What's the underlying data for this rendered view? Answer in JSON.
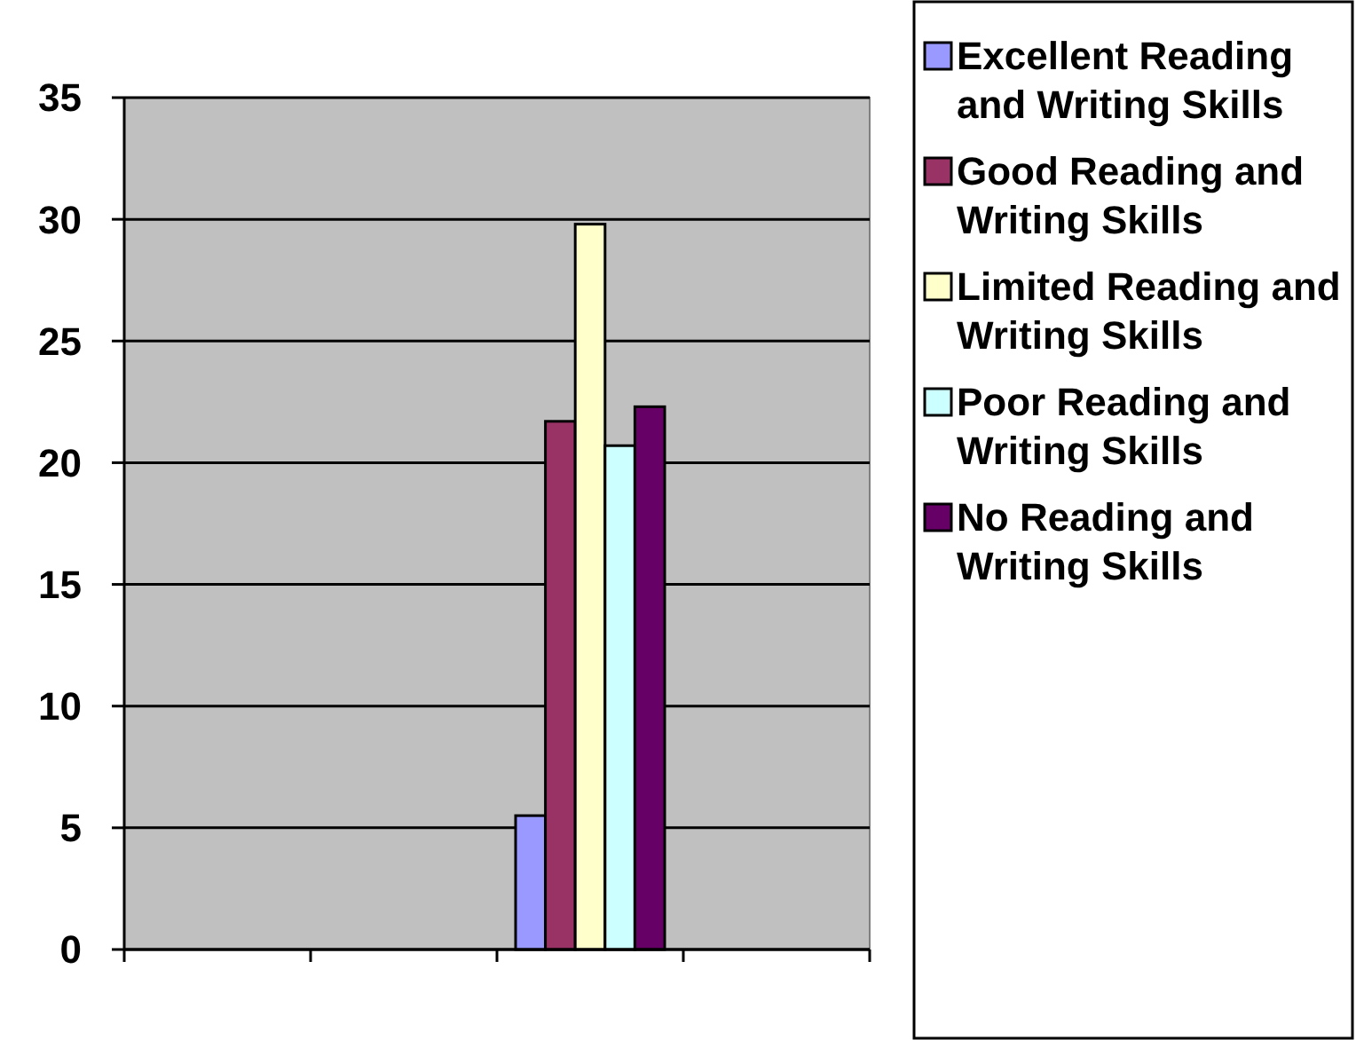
{
  "chart_data": {
    "type": "bar",
    "categories": [
      null,
      null,
      null,
      null
    ],
    "series": [
      {
        "name": "Excellent Reading and Writing Skills",
        "color": "#9999ff",
        "values": [
          null,
          null,
          5.5,
          null
        ]
      },
      {
        "name": "Good Reading and Writing Skills",
        "color": "#993366",
        "values": [
          null,
          null,
          21.7,
          null
        ]
      },
      {
        "name": "Limited Reading and Writing Skills",
        "color": "#ffffcc",
        "values": [
          null,
          null,
          29.8,
          null
        ]
      },
      {
        "name": "Poor Reading and Writing Skills",
        "color": "#ccffff",
        "values": [
          null,
          null,
          20.7,
          null
        ]
      },
      {
        "name": "No Reading and Writing Skills",
        "color": "#660066",
        "values": [
          null,
          null,
          22.3,
          null
        ]
      }
    ],
    "ylim": [
      0,
      35
    ],
    "yticks": [
      0,
      5,
      10,
      15,
      20,
      25,
      30,
      35
    ],
    "grid": "y",
    "legend": "right"
  }
}
